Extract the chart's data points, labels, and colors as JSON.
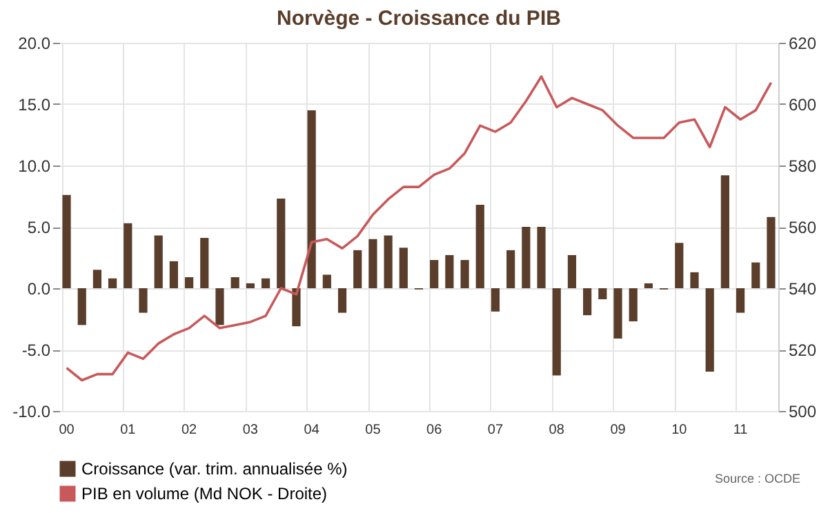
{
  "chart_data": {
    "type": "bar",
    "title": "Norvège - Croissance du PIB",
    "categories": [
      "00",
      null,
      null,
      null,
      "01",
      null,
      null,
      null,
      "02",
      null,
      null,
      null,
      "03",
      null,
      null,
      null,
      "04",
      null,
      null,
      null,
      "05",
      null,
      null,
      null,
      "06",
      null,
      null,
      null,
      "07",
      null,
      null,
      null,
      "08",
      null,
      null,
      null,
      "09",
      null,
      null,
      null,
      "10",
      null,
      null,
      null,
      "11",
      null,
      null
    ],
    "series": [
      {
        "name": "Croissance (var. trim. annualisée %)",
        "color": "#5a3e2b",
        "values": [
          7.6,
          -3.0,
          1.5,
          0.8,
          5.3,
          -2.0,
          4.3,
          2.2,
          0.9,
          4.1,
          -3.0,
          0.9,
          0.4,
          0.8,
          7.3,
          -3.1,
          14.5,
          1.1,
          -2.0,
          3.1,
          4.0,
          4.3,
          3.3,
          -0.1,
          2.3,
          2.7,
          2.3,
          6.8,
          -1.9,
          3.1,
          5.0,
          5.0,
          -7.1,
          2.7,
          -2.2,
          -0.9,
          -4.1,
          -2.7,
          0.4,
          -0.1,
          3.7,
          1.3,
          -6.8,
          9.2,
          -2.0,
          2.1,
          5.8
        ]
      },
      {
        "name": "PIB en volume (Md NOK - Droite)",
        "type": "line",
        "axis": "y2",
        "color": "#c8595a",
        "values": [
          514,
          510,
          512,
          512,
          519,
          517,
          522,
          525,
          527,
          531,
          527,
          528,
          529,
          531,
          540,
          538,
          555,
          556,
          553,
          557,
          564,
          569,
          573,
          573,
          577,
          579,
          584,
          593,
          591,
          594,
          601,
          609,
          599,
          602,
          600,
          598,
          593,
          589,
          589,
          589,
          594,
          595,
          586,
          599,
          595,
          598,
          607
        ]
      }
    ],
    "ylim": [
      -10,
      20
    ],
    "yticks": [
      {
        "value": -10,
        "label": "-10.0"
      },
      {
        "value": -5,
        "label": "-5.0"
      },
      {
        "value": 0,
        "label": "0.0"
      },
      {
        "value": 5,
        "label": "5.0"
      },
      {
        "value": 10,
        "label": "10.0"
      },
      {
        "value": 15,
        "label": "15.0"
      },
      {
        "value": 20,
        "label": "20.0"
      }
    ],
    "y2lim": [
      500,
      620
    ],
    "y2ticks": [
      500,
      520,
      540,
      560,
      580,
      600,
      620
    ],
    "grid": true,
    "legend": "bottom left",
    "annotations": [
      "Source : OCDE"
    ]
  }
}
